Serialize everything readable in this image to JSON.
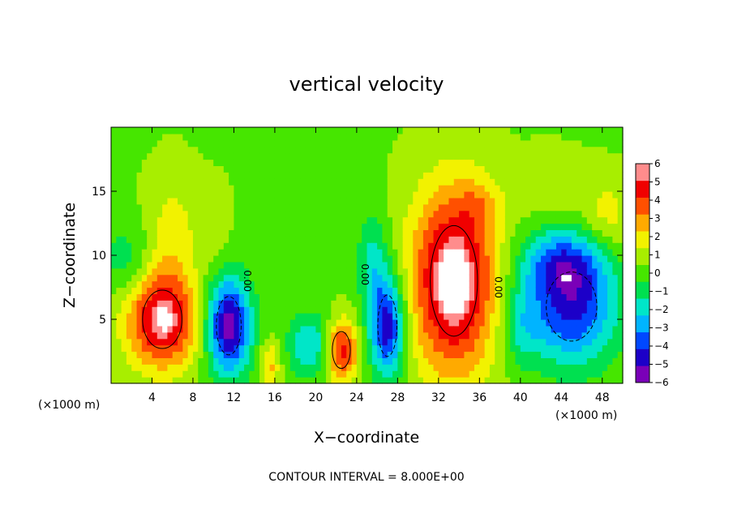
{
  "chart_data": {
    "type": "heatmap",
    "title": "vertical velocity",
    "xlabel": "X−coordinate",
    "ylabel": "Z−coordinate",
    "x_unit_label": "(×1000 m)",
    "y_unit_label": "(×1000 m)",
    "footer": "CONTOUR INTERVAL = 8.000E+00",
    "contour_label": "0.00",
    "x_ticks": [
      4,
      8,
      12,
      16,
      20,
      24,
      28,
      32,
      36,
      40,
      44,
      48
    ],
    "y_ticks": [
      5,
      10,
      15
    ],
    "xlim": [
      0,
      50
    ],
    "ylim": [
      0,
      20
    ],
    "colorbar": {
      "range": [
        -6,
        6
      ],
      "ticks": [
        6,
        5,
        4,
        3,
        2,
        1,
        0,
        -1,
        -2,
        -3,
        -4,
        -5,
        -6
      ],
      "tick_labels": [
        "6",
        "5",
        "4",
        "3",
        "2",
        "1",
        "0",
        "−1",
        "−2",
        "−3",
        "−4",
        "−5",
        "−6"
      ],
      "colors": [
        "#7a00b8",
        "#1c00c8",
        "#0048ff",
        "#00b4ff",
        "#00e6c8",
        "#00e050",
        "#46e600",
        "#a8ee00",
        "#f2f200",
        "#ffaa00",
        "#ff5000",
        "#f00000",
        "#ff8c8c"
      ]
    },
    "background_value": 0.4,
    "features": [
      {
        "x": 5.0,
        "z": 5.0,
        "rx": 3.5,
        "rz": 3.8,
        "w": 5.8
      },
      {
        "x": 33.5,
        "z": 8.0,
        "rx": 4.2,
        "rz": 7.2,
        "w": 6.4
      },
      {
        "x": 22.5,
        "z": 2.6,
        "rx": 1.6,
        "rz": 2.4,
        "w": 4.8
      },
      {
        "x": 11.5,
        "z": 4.5,
        "rx": 2.2,
        "rz": 3.8,
        "w": -6.5
      },
      {
        "x": 27.0,
        "z": 4.5,
        "rx": 1.7,
        "rz": 4.0,
        "w": -5.8
      },
      {
        "x": 45.0,
        "z": 6.0,
        "rx": 4.5,
        "rz": 4.5,
        "w": -5.2
      },
      {
        "x": 44.0,
        "z": 9.5,
        "rx": 4.0,
        "rz": 2.5,
        "w": -3.2
      },
      {
        "x": 19.5,
        "z": 3.0,
        "rx": 2.2,
        "rz": 2.5,
        "w": -3.0
      },
      {
        "x": 25.5,
        "z": 9.5,
        "rx": 1.5,
        "rz": 4.0,
        "w": -2.2
      },
      {
        "x": 40.0,
        "z": 4.5,
        "rx": 1.8,
        "rz": 3.0,
        "w": -1.8
      },
      {
        "x": 6.0,
        "z": 12.0,
        "rx": 2.5,
        "rz": 4.5,
        "w": 1.5
      },
      {
        "x": 10.0,
        "z": 12.5,
        "rx": 1.5,
        "rz": 3.0,
        "w": 0.9
      },
      {
        "x": 1.5,
        "z": 9.5,
        "rx": 2.5,
        "rz": 3.0,
        "w": -1.6
      },
      {
        "x": 15.5,
        "z": 1.5,
        "rx": 1.0,
        "rz": 1.8,
        "w": 2.5
      },
      {
        "x": 36.0,
        "z": 14.0,
        "rx": 2.0,
        "rz": 2.0,
        "w": 1.2
      },
      {
        "x": 48.5,
        "z": 13.0,
        "rx": 2.5,
        "rz": 3.0,
        "w": 1.6
      },
      {
        "x": 43.0,
        "z": 15.5,
        "rx": 3.5,
        "rz": 2.5,
        "w": 1.0
      }
    ]
  }
}
